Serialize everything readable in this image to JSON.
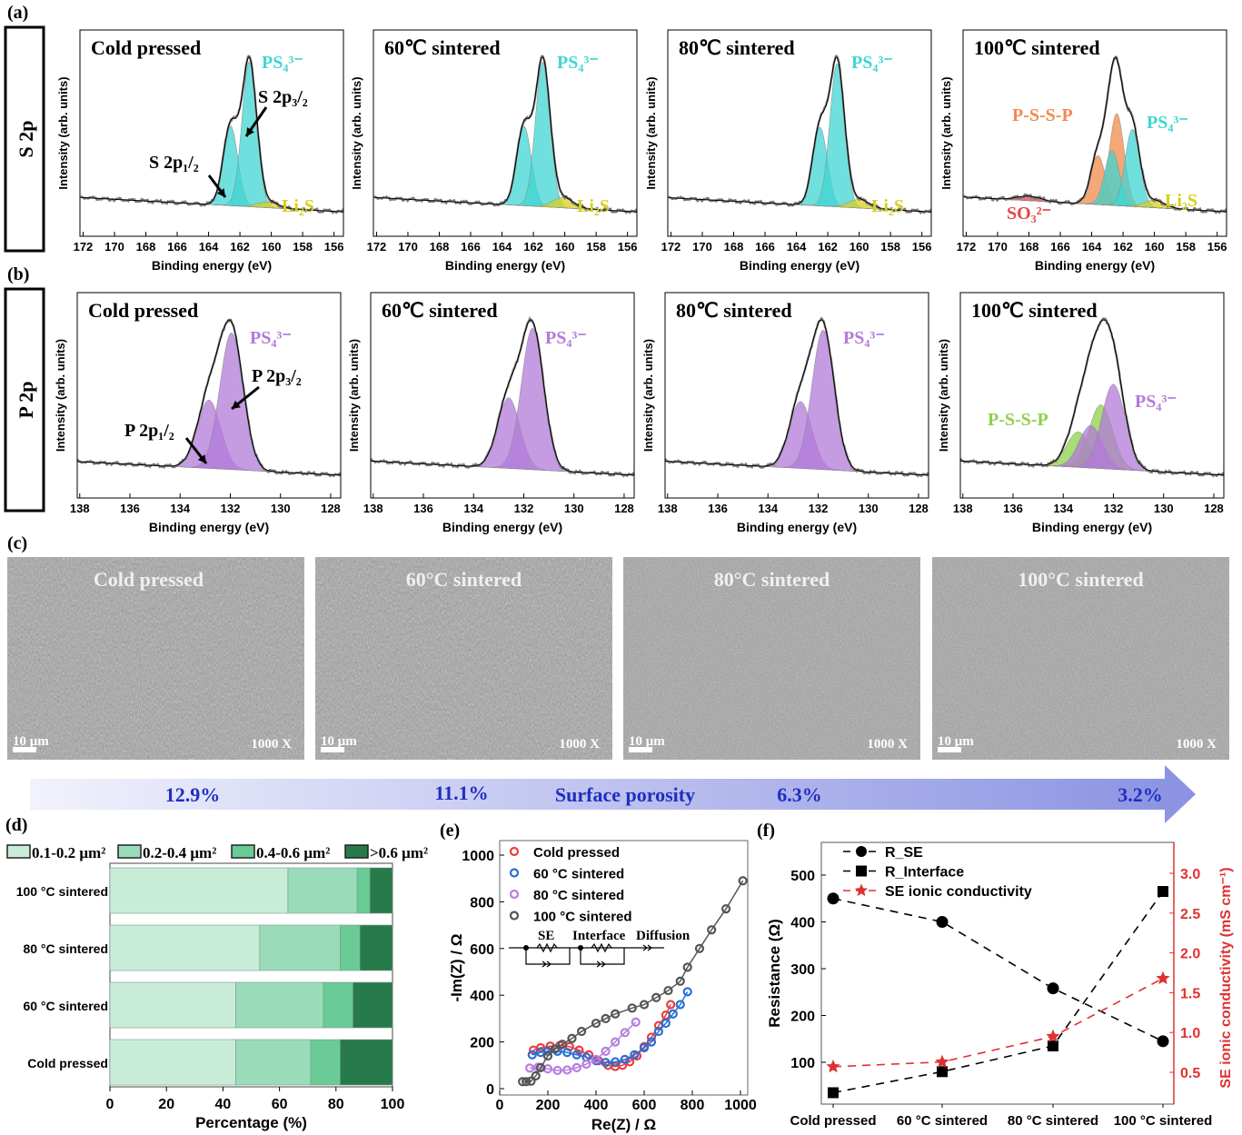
{
  "panel_labels": {
    "a": "(a)",
    "b": "(b)",
    "c": "(c)",
    "d": "(d)",
    "e": "(e)",
    "f": "(f)"
  },
  "row_labels": {
    "a": "S 2p",
    "b": "P 2p"
  },
  "colors": {
    "PS4": "#3fd6d2",
    "Li2S": "#d8cf1e",
    "P-S-S-P_S": "#f28a4a",
    "SO3": "#e04848",
    "PS4_P": "#b27ad8",
    "P-S-S-P_P": "#8ed04a",
    "bar1": "#c9ecd9",
    "bar2": "#9adcb9",
    "bar3": "#6acb97",
    "bar4": "#277a4a",
    "porosity_text": "#1f2fbf",
    "red_axis": "#e03030"
  },
  "sem": [
    {
      "title": "Cold pressed",
      "scale": "10 μm",
      "magnification": "1000 X"
    },
    {
      "title": "60°C sintered",
      "scale": "10 μm",
      "magnification": "1000 X"
    },
    {
      "title": "80°C sintered",
      "scale": "10 μm",
      "magnification": "1000 X"
    },
    {
      "title": "100°C sintered",
      "scale": "10 μm",
      "magnification": "1000 X"
    }
  ],
  "porosity": {
    "label": "Surface porosity",
    "values": [
      "12.9%",
      "11.1%",
      "6.3%",
      "3.2%"
    ]
  },
  "chart_data": [
    {
      "type": "line",
      "panel": "a",
      "title": "Cold pressed",
      "xlabel": "Binding energy (eV)",
      "ylabel": "Intensity (arb. units)",
      "xlim": [
        172,
        156
      ],
      "xticks": [
        172,
        170,
        168,
        166,
        164,
        162,
        160,
        158,
        156
      ],
      "components": [
        {
          "name": "PS₄³⁻",
          "center": 162.6,
          "amplitude": 0.55,
          "fwhm": 1.1,
          "color": "#3fd6d2"
        },
        {
          "name": "PS₄³⁻",
          "center": 161.4,
          "amplitude": 1.0,
          "fwhm": 1.1,
          "color": "#3fd6d2"
        },
        {
          "name": "Li₂S",
          "center": 160.2,
          "amplitude": 0.04,
          "fwhm": 1.6,
          "color": "#d8cf1e"
        }
      ],
      "annotations": [
        "PS₄³⁻",
        "Li₂S",
        "S 2p₃/₂",
        "S 2p₁/₂"
      ]
    },
    {
      "type": "line",
      "panel": "a",
      "title": "60℃ sintered",
      "xlabel": "Binding energy (eV)",
      "ylabel": "Intensity (arb. units)",
      "xlim": [
        172,
        156
      ],
      "xticks": [
        172,
        170,
        168,
        166,
        164,
        162,
        160,
        158,
        156
      ],
      "components": [
        {
          "name": "PS₄³⁻",
          "center": 162.6,
          "amplitude": 0.55,
          "fwhm": 1.1,
          "color": "#3fd6d2"
        },
        {
          "name": "PS₄³⁻",
          "center": 161.4,
          "amplitude": 1.0,
          "fwhm": 1.1,
          "color": "#3fd6d2"
        },
        {
          "name": "Li₂S",
          "center": 160.1,
          "amplitude": 0.07,
          "fwhm": 1.6,
          "color": "#d8cf1e"
        }
      ],
      "annotations": [
        "PS₄³⁻",
        "Li₂S"
      ]
    },
    {
      "type": "line",
      "panel": "a",
      "title": "80℃ sintered",
      "xlabel": "Binding energy (eV)",
      "ylabel": "Intensity (arb. units)",
      "xlim": [
        172,
        156
      ],
      "xticks": [
        172,
        170,
        168,
        166,
        164,
        162,
        160,
        158,
        156
      ],
      "components": [
        {
          "name": "PS₄³⁻",
          "center": 162.5,
          "amplitude": 0.55,
          "fwhm": 1.1,
          "color": "#3fd6d2"
        },
        {
          "name": "PS₄³⁻",
          "center": 161.4,
          "amplitude": 1.0,
          "fwhm": 1.1,
          "color": "#3fd6d2"
        },
        {
          "name": "Li₂S",
          "center": 160.0,
          "amplitude": 0.06,
          "fwhm": 1.6,
          "color": "#d8cf1e"
        }
      ],
      "annotations": [
        "PS₄³⁻",
        "Li₂S"
      ]
    },
    {
      "type": "line",
      "panel": "a",
      "title": "100℃ sintered",
      "xlabel": "Binding energy (eV)",
      "ylabel": "Intensity (arb. units)",
      "xlim": [
        172,
        156
      ],
      "xticks": [
        172,
        170,
        168,
        166,
        164,
        162,
        160,
        158,
        156
      ],
      "components": [
        {
          "name": "P-S-S-P",
          "center": 163.6,
          "amplitude": 0.33,
          "fwhm": 1.1,
          "color": "#f28a4a"
        },
        {
          "name": "P-S-S-P",
          "center": 162.4,
          "amplitude": 0.62,
          "fwhm": 1.1,
          "color": "#f28a4a"
        },
        {
          "name": "PS₄³⁻",
          "center": 162.7,
          "amplitude": 0.37,
          "fwhm": 1.1,
          "color": "#3fd6d2"
        },
        {
          "name": "PS₄³⁻",
          "center": 161.4,
          "amplitude": 0.52,
          "fwhm": 1.1,
          "color": "#3fd6d2"
        },
        {
          "name": "Li₂S",
          "center": 160.0,
          "amplitude": 0.05,
          "fwhm": 1.6,
          "color": "#d8cf1e"
        },
        {
          "name": "SO₃²⁻",
          "center": 168.0,
          "amplitude": 0.03,
          "fwhm": 1.8,
          "color": "#e04848"
        }
      ],
      "annotations": [
        "P-S-S-P",
        "PS₄³⁻",
        "SO₃²⁻",
        "Li₂S"
      ]
    },
    {
      "type": "line",
      "panel": "b",
      "title": "Cold pressed",
      "xlabel": "Binding energy (eV)",
      "ylabel": "Intensity (arb. units)",
      "xlim": [
        138,
        128
      ],
      "xticks": [
        138,
        136,
        134,
        132,
        130,
        128
      ],
      "components": [
        {
          "name": "PS₄³⁻",
          "center": 132.85,
          "amplitude": 0.5,
          "fwhm": 1.1,
          "color": "#b27ad8"
        },
        {
          "name": "PS₄³⁻",
          "center": 131.95,
          "amplitude": 1.0,
          "fwhm": 1.1,
          "color": "#b27ad8"
        }
      ],
      "annotations": [
        "PS₄³⁻",
        "P 2p₃/₂",
        "P 2p₁/₂"
      ]
    },
    {
      "type": "line",
      "panel": "b",
      "title": "60℃ sintered",
      "xlabel": "Binding energy (eV)",
      "ylabel": "Intensity (arb. units)",
      "xlim": [
        138,
        128
      ],
      "xticks": [
        138,
        136,
        134,
        132,
        130,
        128
      ],
      "components": [
        {
          "name": "PS₄³⁻",
          "center": 132.6,
          "amplitude": 0.5,
          "fwhm": 1.05,
          "color": "#b27ad8"
        },
        {
          "name": "PS₄³⁻",
          "center": 131.65,
          "amplitude": 1.0,
          "fwhm": 1.05,
          "color": "#b27ad8"
        }
      ],
      "annotations": [
        "PS₄³⁻"
      ]
    },
    {
      "type": "line",
      "panel": "b",
      "title": "80℃ sintered",
      "xlabel": "Binding energy (eV)",
      "ylabel": "Intensity (arb. units)",
      "xlim": [
        138,
        128
      ],
      "xticks": [
        138,
        136,
        134,
        132,
        130,
        128
      ],
      "components": [
        {
          "name": "PS₄³⁻",
          "center": 132.7,
          "amplitude": 0.48,
          "fwhm": 1.05,
          "color": "#b27ad8"
        },
        {
          "name": "PS₄³⁻",
          "center": 131.8,
          "amplitude": 1.0,
          "fwhm": 1.05,
          "color": "#b27ad8"
        }
      ],
      "annotations": [
        "PS₄³⁻"
      ]
    },
    {
      "type": "line",
      "panel": "b",
      "title": "100℃ sintered",
      "xlabel": "Binding energy (eV)",
      "ylabel": "Intensity (arb. units)",
      "xlim": [
        138,
        128
      ],
      "xticks": [
        138,
        136,
        134,
        132,
        130,
        128
      ],
      "components": [
        {
          "name": "P-S-S-P",
          "center": 133.4,
          "amplitude": 0.25,
          "fwhm": 1.1,
          "color": "#8ed04a"
        },
        {
          "name": "P-S-S-P",
          "center": 132.5,
          "amplitude": 0.45,
          "fwhm": 1.1,
          "color": "#8ed04a"
        },
        {
          "name": "PS₄³⁻",
          "center": 132.9,
          "amplitude": 0.3,
          "fwhm": 1.1,
          "color": "#b27ad8"
        },
        {
          "name": "PS₄³⁻",
          "center": 132.0,
          "amplitude": 0.6,
          "fwhm": 1.1,
          "color": "#b27ad8"
        }
      ],
      "annotations": [
        "P-S-S-P",
        "PS₄³⁻"
      ]
    },
    {
      "type": "bar",
      "panel": "d",
      "orientation": "horizontal",
      "stacked": true,
      "xlabel": "Percentage (%)",
      "xlim": [
        0,
        100
      ],
      "xticks": [
        0,
        20,
        40,
        60,
        80,
        100
      ],
      "categories": [
        "Cold pressed",
        "60 °C sintered",
        "80 °C sintered",
        "100 °C sintered"
      ],
      "series": [
        {
          "name": "0.1-0.2 μm²",
          "values": [
            44.5,
            44.5,
            53,
            63
          ],
          "color": "#c9ecd9"
        },
        {
          "name": "0.2-0.4 μm²",
          "values": [
            26.5,
            31,
            28.5,
            24.5
          ],
          "color": "#9adcb9"
        },
        {
          "name": "0.4-0.6 μm²",
          "values": [
            10.5,
            10.5,
            7,
            4.5
          ],
          "color": "#6acb97"
        },
        {
          "name": ">0.6 μm²",
          "values": [
            18.5,
            14,
            11.5,
            8
          ],
          "color": "#277a4a"
        }
      ],
      "legend": "top"
    },
    {
      "type": "scatter",
      "panel": "e",
      "xlabel": "Re(Z) / Ω",
      "ylabel": "-Im(Z) / Ω",
      "xlim": [
        0,
        1000
      ],
      "ylim": [
        0,
        1000
      ],
      "xticks": [
        0,
        200,
        400,
        600,
        800,
        1000
      ],
      "yticks": [
        0,
        200,
        400,
        600,
        800,
        1000
      ],
      "legend": "top-left",
      "inset_labels": [
        "SE",
        "Interface",
        "Diffusion"
      ],
      "series": [
        {
          "name": "Cold pressed",
          "color": "#e84040",
          "x": [
            140,
            170,
            210,
            250,
            290,
            330,
            370,
            410,
            450,
            480,
            510,
            540,
            570,
            600,
            630,
            660,
            690,
            710
          ],
          "y": [
            165,
            175,
            182,
            185,
            180,
            165,
            145,
            120,
            100,
            95,
            100,
            115,
            140,
            180,
            220,
            270,
            315,
            360
          ]
        },
        {
          "name": "60 °C sintered",
          "color": "#2a6fd6",
          "x": [
            135,
            170,
            200,
            240,
            280,
            320,
            360,
            400,
            440,
            480,
            520,
            560,
            600,
            630,
            660,
            690,
            720,
            750,
            780
          ],
          "y": [
            145,
            155,
            160,
            160,
            155,
            145,
            135,
            120,
            112,
            115,
            125,
            145,
            175,
            200,
            245,
            280,
            320,
            360,
            415
          ]
        },
        {
          "name": "80 °C sintered",
          "color": "#b77ee0",
          "x": [
            125,
            160,
            200,
            240,
            280,
            320,
            360,
            400,
            440,
            480,
            520,
            565
          ],
          "y": [
            88,
            92,
            85,
            78,
            80,
            90,
            105,
            125,
            160,
            200,
            240,
            285
          ]
        },
        {
          "name": "100 °C sintered",
          "color": "#555555",
          "x": [
            95,
            110,
            130,
            150,
            170,
            200,
            230,
            260,
            300,
            340,
            400,
            440,
            480,
            550,
            600,
            650,
            700,
            750,
            780,
            830,
            880,
            940,
            1010
          ],
          "y": [
            30,
            30,
            32,
            55,
            90,
            140,
            170,
            190,
            215,
            245,
            280,
            300,
            320,
            345,
            360,
            390,
            420,
            460,
            520,
            600,
            680,
            770,
            890
          ]
        }
      ]
    },
    {
      "type": "line",
      "panel": "f",
      "categories": [
        "Cold pressed",
        "60 °C sintered",
        "80 °C sintered",
        "100 °C sintered"
      ],
      "ylabel": "Resistance (Ω)",
      "ylabel_right": "SE ionic conductivity (mS cm⁻¹)",
      "yticks": [
        100,
        200,
        300,
        400,
        500
      ],
      "yticks_right": [
        0.5,
        1.0,
        1.5,
        2.0,
        2.5,
        3.0
      ],
      "legend": "top-left",
      "series": [
        {
          "name": "R_SE",
          "axis": "left",
          "marker": "circle",
          "color": "#000000",
          "values": [
            450,
            400,
            258,
            145
          ]
        },
        {
          "name": "R_Interface",
          "axis": "left",
          "marker": "square",
          "color": "#000000",
          "values": [
            35,
            80,
            135,
            465
          ]
        },
        {
          "name": "SE ionic conductivity",
          "axis": "right",
          "marker": "star",
          "color": "#e03030",
          "values": [
            0.57,
            0.63,
            0.95,
            1.68
          ]
        }
      ]
    }
  ]
}
